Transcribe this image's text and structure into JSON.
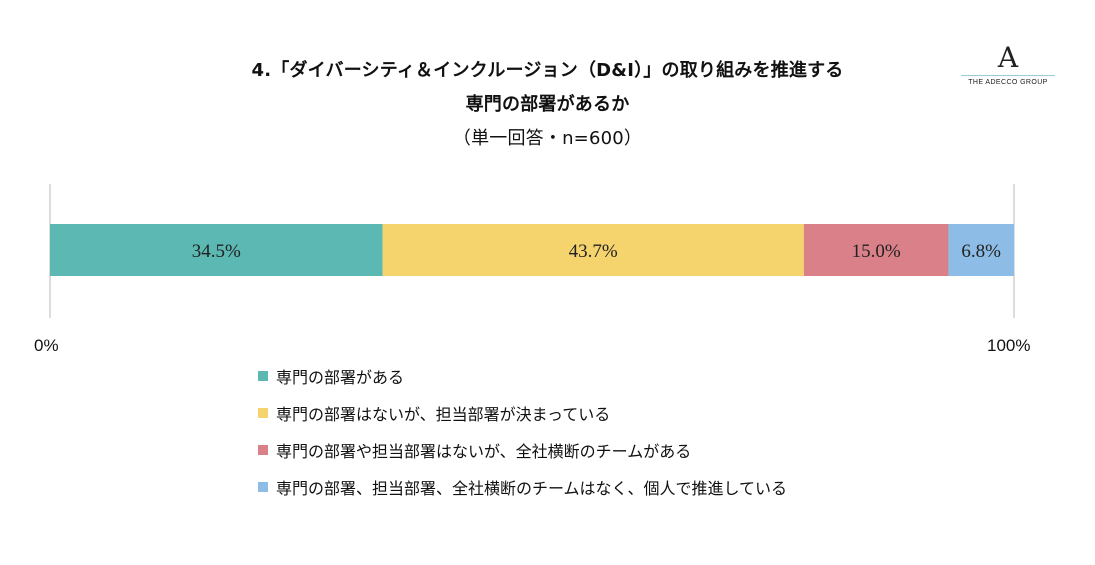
{
  "header": {
    "title_line1": "4.「ダイバーシティ＆インクルージョン（D&I）」の取り組みを推進する",
    "title_line2": "専門の部署があるか",
    "subtitle": "（単一回答・n=600）"
  },
  "logo": {
    "mark": "A",
    "text": "THE ADECCO GROUP"
  },
  "chart_data": {
    "type": "bar",
    "orientation": "horizontal-stacked-100",
    "title": "4.「ダイバーシティ＆インクルージョン（D&I）」の取り組みを推進する専門の部署があるか",
    "subtitle": "（単一回答・n=600）",
    "xlim": [
      0,
      100
    ],
    "tick_labels": [
      "0%",
      "100%"
    ],
    "legend_position": "bottom",
    "series": [
      {
        "name": "専門の部署がある",
        "value": 34.5,
        "label": "34.5%",
        "color": "#5cb8b2"
      },
      {
        "name": "専門の部署はないが、担当部署が決まっている",
        "value": 43.7,
        "label": "43.7%",
        "color": "#f5d46d"
      },
      {
        "name": "専門の部署や担当部署はないが、全社横断のチームがある",
        "value": 15.0,
        "label": "15.0%",
        "color": "#d98088"
      },
      {
        "name": "専門の部署、担当部署、全社横断のチームはなく、個人で推進している",
        "value": 6.8,
        "label": "6.8%",
        "color": "#8dbde6"
      }
    ]
  }
}
